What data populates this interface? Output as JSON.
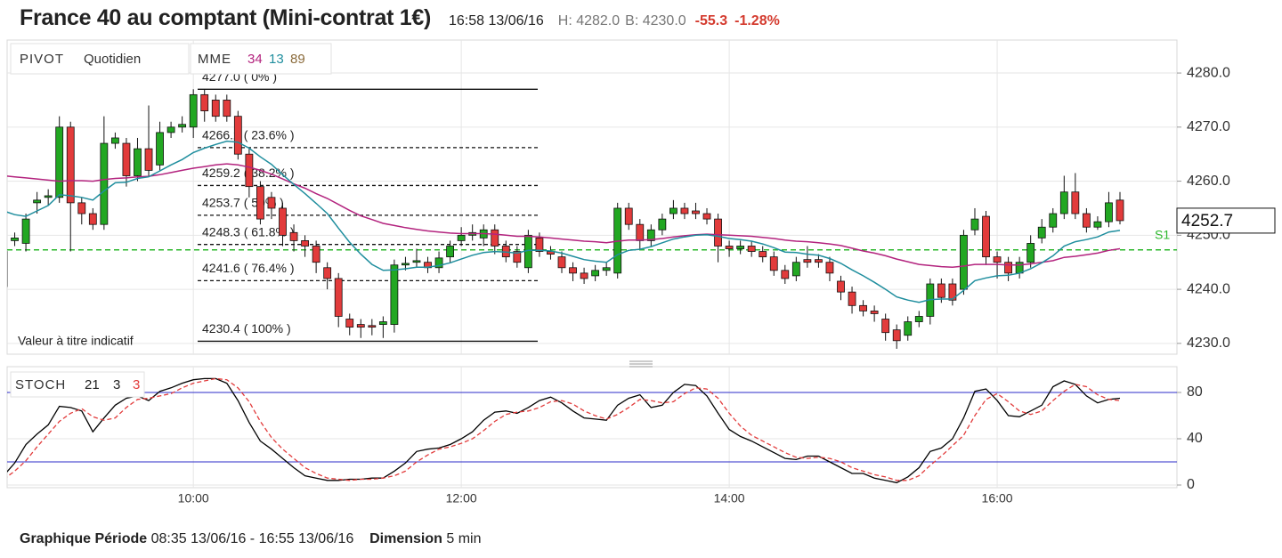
{
  "header": {
    "title": "France 40 au comptant (Mini-contrat 1€)",
    "time": "16:58 13/06/16",
    "high": "H: 4282.0",
    "low": "B: 4230.0",
    "change": "-55.3",
    "change_pct": "-1.28%"
  },
  "chart_data": [
    {
      "type": "candlestick",
      "pivot": {
        "label": "PIVOT",
        "period": "Quotidien"
      },
      "indicator": "MME",
      "note": "Valeur à titre indicatif",
      "categories": [
        null,
        null,
        null,
        null,
        null,
        null,
        null,
        null,
        null,
        null,
        null,
        null,
        null,
        null,
        null,
        null,
        null,
        "10:00",
        null,
        null,
        null,
        null,
        null,
        null,
        null,
        null,
        null,
        null,
        null,
        null,
        null,
        null,
        null,
        null,
        null,
        null,
        null,
        null,
        null,
        null,
        null,
        "12:00",
        null,
        null,
        null,
        null,
        null,
        null,
        null,
        null,
        null,
        null,
        null,
        null,
        null,
        null,
        null,
        null,
        null,
        null,
        null,
        null,
        null,
        null,
        null,
        "14:00",
        null,
        null,
        null,
        null,
        null,
        null,
        null,
        null,
        null,
        null,
        null,
        null,
        null,
        null,
        null,
        null,
        null,
        null,
        null,
        null,
        null,
        null,
        null,
        "16:00",
        null,
        null,
        null,
        null,
        null,
        null,
        null,
        null,
        null,
        null,
        null
      ],
      "open": [
        4240.5,
        4249,
        4248.5,
        4256,
        4257,
        4257,
        4270,
        4256,
        4254,
        4252,
        4267,
        4267,
        4261,
        4266,
        4263,
        4269,
        4270,
        4270,
        4276,
        4275,
        4275,
        4272,
        4265,
        4259,
        4257,
        4255,
        4250.5,
        4249,
        4248,
        4244,
        4242,
        4234.5,
        4233.5,
        4233.3,
        4233.5,
        4233.5,
        4244.5,
        4245,
        4245,
        4244,
        4246,
        4249,
        4250,
        4249.5,
        4251,
        4248,
        4247,
        4244,
        4249.5,
        4247,
        4246,
        4244,
        4243,
        4242.5,
        4243.5,
        4243,
        4255,
        4252,
        4249,
        4251,
        4254,
        4255,
        4254.5,
        4254,
        4253,
        4248,
        4247.5,
        4248,
        4247,
        4246,
        4243.5,
        4242.5,
        4245.5,
        4245.5,
        4245,
        4241.5,
        4239.5,
        4237,
        4236,
        4234.5,
        4232.5,
        4231.5,
        4234,
        4235,
        4241,
        4241,
        4240,
        4251,
        4253.5,
        4246,
        4245,
        4243,
        4245,
        4249.5,
        4251.5,
        4254,
        4258,
        4254,
        4251.5,
        4252.5,
        4256.5
      ],
      "high": [
        4248,
        4250.5,
        4254,
        4258,
        4258.5,
        4272,
        4271,
        4257,
        4255,
        4272,
        4269,
        4268,
        4268,
        4274,
        4271,
        4271,
        4272,
        4277,
        4277,
        4276,
        4276,
        4273,
        4266,
        4260,
        4258,
        4256,
        4252,
        4250,
        4249,
        4245,
        4243,
        4235.5,
        4234.5,
        4234.5,
        4235,
        4245.5,
        4246,
        4247.5,
        4246,
        4247,
        4249,
        4251.5,
        4252,
        4252,
        4252,
        4249,
        4248,
        4251,
        4250.5,
        4248,
        4247,
        4245,
        4244,
        4244.5,
        4245,
        4256,
        4256,
        4253,
        4252,
        4254,
        4256.5,
        4256,
        4256,
        4255,
        4254,
        4249,
        4249,
        4249,
        4248,
        4247,
        4244.5,
        4246,
        4248,
        4246.5,
        4246,
        4242.5,
        4240.5,
        4238,
        4237,
        4235.5,
        4233.5,
        4235,
        4236,
        4242,
        4242,
        4242,
        4251,
        4255,
        4254.5,
        4247,
        4246,
        4246,
        4250,
        4253,
        4255,
        4261,
        4261.5,
        4255,
        4253.5,
        4258,
        4258
      ],
      "low": [
        4238,
        4248,
        4247,
        4254,
        4255.5,
        4256,
        4247,
        4252,
        4251,
        4251,
        4266,
        4259,
        4260,
        4261,
        4262,
        4268,
        4269,
        4268,
        4271,
        4271,
        4271,
        4264,
        4257,
        4252,
        4253,
        4248,
        4247,
        4246,
        4243,
        4240,
        4233,
        4231.5,
        4231,
        4231.5,
        4231,
        4232,
        4243.5,
        4244,
        4243,
        4243,
        4245,
        4248,
        4249,
        4248,
        4246.5,
        4245,
        4244,
        4243,
        4246,
        4245.5,
        4243,
        4241.5,
        4241,
        4241.5,
        4242.5,
        4242,
        4251,
        4247.5,
        4248,
        4250,
        4253,
        4253,
        4253,
        4252,
        4245,
        4246,
        4246.5,
        4246,
        4245,
        4242.5,
        4241,
        4241.5,
        4244,
        4244,
        4241.5,
        4238,
        4235.5,
        4235,
        4234,
        4230.5,
        4229,
        4230.5,
        4233,
        4233.5,
        4237.5,
        4237,
        4239,
        4250,
        4244.5,
        4242,
        4241.5,
        4242,
        4244,
        4248.5,
        4250.5,
        4253,
        4253,
        4250.5,
        4251,
        4251.5,
        4252
      ],
      "close": [
        4247,
        4249.5,
        4253,
        4256.5,
        4257.3,
        4270,
        4256,
        4254,
        4252,
        4267,
        4268,
        4261,
        4266,
        4262,
        4269,
        4270,
        4270.5,
        4276,
        4273,
        4272,
        4272,
        4265,
        4259,
        4253,
        4255,
        4250,
        4249,
        4248,
        4245,
        4242,
        4235,
        4233,
        4233,
        4233,
        4234,
        4244.5,
        4244.8,
        4245.3,
        4244,
        4245.8,
        4248,
        4250,
        4250.5,
        4251,
        4248,
        4246,
        4245,
        4250,
        4247,
        4246.5,
        4244,
        4243,
        4242,
        4243.5,
        4244,
        4255,
        4252,
        4249,
        4251,
        4253,
        4255,
        4254,
        4254,
        4253,
        4248,
        4247.5,
        4248,
        4247,
        4246,
        4243.5,
        4242,
        4245,
        4245,
        4245,
        4243,
        4239.5,
        4237,
        4236,
        4235.5,
        4232,
        4230.5,
        4234,
        4235,
        4241,
        4238.5,
        4238,
        4250,
        4253,
        4246,
        4245,
        4243,
        4245,
        4248.5,
        4251.5,
        4254,
        4258,
        4254,
        4251.5,
        4252.5,
        4256,
        4252.7
      ],
      "up_color": "#22a722",
      "down_color": "#e23b3b",
      "series": [
        {
          "name": "34",
          "color": "#b3237e",
          "values": [
            4261,
            4260.8,
            4260.6,
            4260.4,
            4260.2,
            4260,
            4260.1,
            4260.1,
            4260,
            4260.3,
            4260.5,
            4260.6,
            4260.8,
            4260.9,
            4261.2,
            4261.6,
            4262,
            4262.4,
            4262.7,
            4263,
            4263.2,
            4263,
            4262.6,
            4262,
            4261.3,
            4260.4,
            4259.5,
            4258.7,
            4257.7,
            4256.8,
            4255.7,
            4254.6,
            4253.6,
            4252.9,
            4252.2,
            4251.8,
            4251.4,
            4251.1,
            4250.8,
            4250.6,
            4250.4,
            4250.3,
            4250.3,
            4250.3,
            4250.2,
            4250,
            4249.8,
            4249.8,
            4249.7,
            4249.5,
            4249.3,
            4249.1,
            4248.9,
            4248.8,
            4248.6,
            4248.9,
            4249.1,
            4249.1,
            4249.2,
            4249.4,
            4249.7,
            4249.9,
            4250.1,
            4250.2,
            4250.1,
            4250,
            4249.9,
            4249.8,
            4249.6,
            4249.4,
            4249.1,
            4248.9,
            4248.8,
            4248.6,
            4248.4,
            4248.1,
            4247.6,
            4247.1,
            4246.7,
            4246.2,
            4245.6,
            4245.1,
            4244.6,
            4244.4,
            4244.2,
            4244.1,
            4244.3,
            4244.6,
            4244.6,
            4244.6,
            4244.5,
            4244.5,
            4244.7,
            4245,
            4245.3,
            4245.9,
            4246.1,
            4246.4,
            4246.7,
            4247.2,
            4247.5
          ]
        },
        {
          "name": "13",
          "color": "#1f8e9e",
          "values": [
            4254.5,
            4253.8,
            4253.5,
            4254.5,
            4255.5,
            4257.5,
            4257.3,
            4257,
            4256.5,
            4258.2,
            4259.7,
            4259.8,
            4260.5,
            4260.8,
            4261.9,
            4263,
            4264,
            4265.3,
            4266.1,
            4266.8,
            4267.4,
            4267.2,
            4266.1,
            4264.5,
            4263.1,
            4261.2,
            4259.4,
            4257.7,
            4255.9,
            4254,
            4251.3,
            4248.7,
            4246.5,
            4244.6,
            4243.5,
            4243.6,
            4243.8,
            4244.1,
            4244.1,
            4244.4,
            4244.9,
            4245.6,
            4246.3,
            4246.8,
            4247,
            4246.9,
            4246.7,
            4247.2,
            4247.2,
            4247.1,
            4246.7,
            4246.1,
            4245.5,
            4245.2,
            4245,
            4246.4,
            4247.2,
            4247.4,
            4247.9,
            4248.6,
            4249.3,
            4249.7,
            4250,
            4250.1,
            4249.8,
            4249.4,
            4249.2,
            4248.9,
            4248.4,
            4247.7,
            4246.9,
            4246.8,
            4246.5,
            4246.3,
            4245.7,
            4244.8,
            4243.6,
            4242.5,
            4241.3,
            4240,
            4238.6,
            4238,
            4237.6,
            4238.1,
            4238.2,
            4238.2,
            4239.8,
            4241.6,
            4242.1,
            4242.5,
            4242.6,
            4243,
            4243.8,
            4244.9,
            4246.2,
            4248,
            4248.8,
            4249.2,
            4249.7,
            4250.6,
            4250.9
          ]
        }
      ],
      "extra_legend": [
        {
          "name": "89",
          "color": "#8a6a3a"
        }
      ],
      "fib_levels": [
        {
          "value": 4277.0,
          "label": "4277.0 ( 0% )"
        },
        {
          "value": 4266.2,
          "label": "4266.2 ( 23.6% )"
        },
        {
          "value": 4259.2,
          "label": "4259.2 ( 38.2% )"
        },
        {
          "value": 4253.7,
          "label": "4253.7 ( 50% )"
        },
        {
          "value": 4248.3,
          "label": "4248.3 ( 61.8% )"
        },
        {
          "value": 4241.6,
          "label": "4241.6 ( 76.4% )"
        },
        {
          "value": 4230.4,
          "label": "4230.4 ( 100% )"
        }
      ],
      "support": {
        "label": "S1",
        "value": 4247.3,
        "color": "#2db82d"
      },
      "last_price": 4252.7,
      "ylim": [
        4228.0,
        4286.1
      ],
      "yticks": [
        {
          "value": 4230,
          "label": "4230.0"
        },
        {
          "value": 4240,
          "label": "4240.0"
        },
        {
          "value": 4250,
          "label": "4250.0"
        },
        {
          "value": 4260,
          "label": "4260.0"
        },
        {
          "value": 4270,
          "label": "4270.0"
        },
        {
          "value": 4280,
          "label": "4280.0"
        }
      ],
      "grid": true
    },
    {
      "type": "line",
      "indicator": "STOCH",
      "params": [
        21,
        3,
        3
      ],
      "param_colors": [
        "#222222",
        "#222222",
        "#e23b3b"
      ],
      "series": [
        {
          "color": "#000000",
          "values": [
            8,
            19,
            35,
            44,
            52,
            68,
            67,
            64,
            46,
            58,
            69,
            75,
            77,
            73,
            81,
            84,
            88,
            91,
            92,
            92,
            88,
            73,
            54,
            38,
            31,
            23,
            15,
            8,
            6,
            4,
            4,
            5,
            5,
            6,
            6,
            12,
            19,
            29,
            31,
            32,
            35,
            40,
            46,
            56,
            63,
            64,
            62,
            67,
            73,
            76,
            71,
            64,
            58,
            57,
            56,
            69,
            75,
            78,
            67,
            69,
            80,
            87,
            86,
            77,
            62,
            48,
            42,
            38,
            33,
            28,
            23,
            22,
            25,
            25,
            20,
            15,
            10,
            10,
            6,
            4,
            2,
            7,
            15,
            29,
            32,
            40,
            58,
            81,
            83,
            73,
            60,
            59,
            64,
            69,
            85,
            90,
            87,
            77,
            71,
            74,
            75
          ]
        },
        {
          "color": "#e23b3b",
          "dashed": true,
          "values": [
            5,
            12,
            21,
            33,
            44,
            55,
            62,
            66,
            59,
            56,
            58,
            67,
            74,
            75,
            77,
            79,
            84,
            88,
            90,
            92,
            91,
            84,
            72,
            55,
            41,
            31,
            23,
            15,
            10,
            6,
            5,
            4,
            5,
            5,
            6,
            8,
            12,
            20,
            26,
            31,
            33,
            36,
            40,
            47,
            55,
            61,
            63,
            64,
            67,
            72,
            73,
            70,
            64,
            60,
            57,
            61,
            67,
            74,
            73,
            71,
            72,
            79,
            84,
            83,
            75,
            62,
            51,
            43,
            38,
            33,
            28,
            24,
            23,
            24,
            23,
            20,
            15,
            12,
            9,
            7,
            4,
            4,
            8,
            17,
            25,
            34,
            43,
            60,
            74,
            79,
            72,
            64,
            61,
            64,
            73,
            81,
            87,
            85,
            78,
            74,
            73
          ]
        }
      ],
      "levels": [
        20,
        80
      ],
      "level_color": "#2b2bc8",
      "ylim": [
        -2.3,
        102.3
      ],
      "yticks": [
        0,
        40,
        80
      ],
      "grid": true
    }
  ],
  "footer": {
    "period_label": "Graphique Période",
    "period": "08:35 13/06/16 - 16:55 13/06/16",
    "dimension_label": "Dimension",
    "dimension": "5 min"
  }
}
